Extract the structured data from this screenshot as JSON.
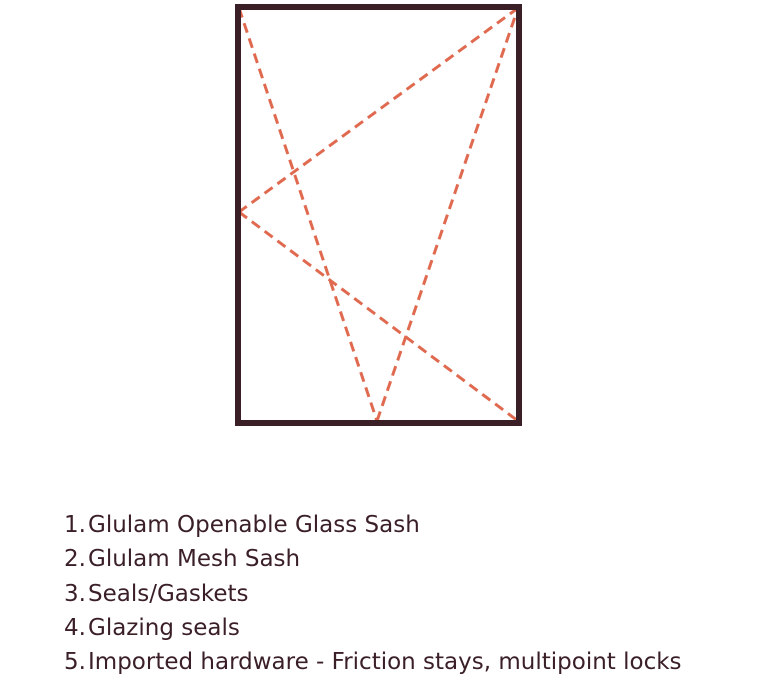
{
  "colors": {
    "frame": "#3a1f26",
    "dash": "#e06a50",
    "text": "#3a1f26",
    "background": "#ffffff"
  },
  "diagram": {
    "type": "window-sash-elevation",
    "frame_shape": "rectangle",
    "opening_indicator": "dashed",
    "dashed_line_count": 4
  },
  "spec_list": {
    "items": [
      {
        "number": "1.",
        "text": "Glulam Openable Glass Sash"
      },
      {
        "number": "2.",
        "text": "Glulam Mesh Sash"
      },
      {
        "number": "3.",
        "text": "Seals/Gaskets"
      },
      {
        "number": "4.",
        "text": "Glazing seals"
      },
      {
        "number": "5.",
        "text": "Imported hardware - Friction stays, multipoint locks"
      }
    ]
  }
}
